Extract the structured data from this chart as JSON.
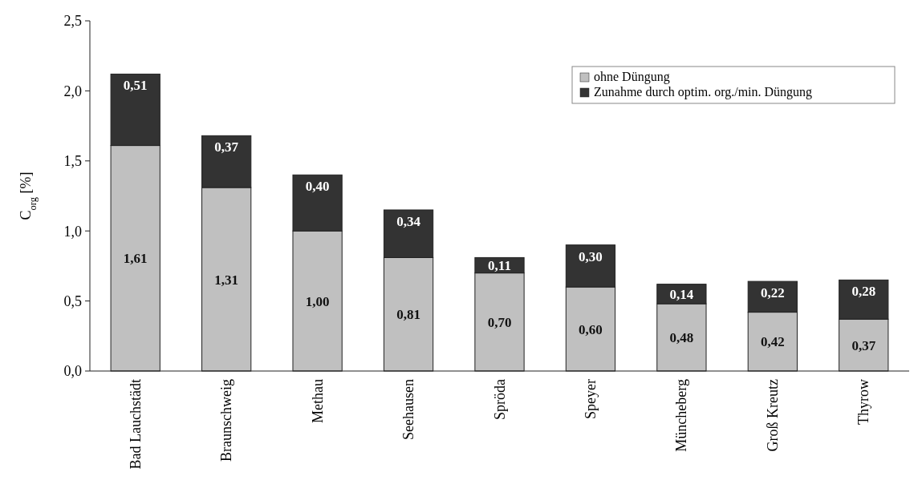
{
  "chart_data": {
    "type": "bar",
    "stacked": true,
    "ylabel": "C$_{org}$ [%]",
    "categories": [
      "Bad Lauchstädt",
      "Braunschweig",
      "Methau",
      "Seehausen",
      "Spröda",
      "Speyer",
      "Müncheberg",
      "Groß Kreutz",
      "Thyrow"
    ],
    "series": [
      {
        "name": "ohne Düngung",
        "color": "#c0c0c0",
        "values": [
          1.61,
          1.31,
          1.0,
          0.81,
          0.7,
          0.6,
          0.48,
          0.42,
          0.37
        ],
        "value_labels": [
          "1,61",
          "1,31",
          "1,00",
          "0,81",
          "0,70",
          "0,60",
          "0,48",
          "0,42",
          "0,37"
        ]
      },
      {
        "name": "Zunahme durch optim. org./min. Düngung",
        "color": "#333333",
        "values": [
          0.51,
          0.37,
          0.4,
          0.34,
          0.11,
          0.3,
          0.14,
          0.22,
          0.28
        ],
        "value_labels": [
          "0,51",
          "0,37",
          "0,40",
          "0,34",
          "0,11",
          "0,30",
          "0,14",
          "0,22",
          "0,28"
        ]
      }
    ],
    "ylim": [
      0,
      2.5
    ],
    "yticks": [
      {
        "value": 0,
        "label": "0,0"
      },
      {
        "value": 0.5,
        "label": "0,5"
      },
      {
        "value": 1,
        "label": "1,0"
      },
      {
        "value": 1.5,
        "label": "1,5"
      },
      {
        "value": 2,
        "label": "2,0"
      },
      {
        "value": 2.5,
        "label": "2,5"
      }
    ],
    "legend": "top right",
    "grid": false
  }
}
